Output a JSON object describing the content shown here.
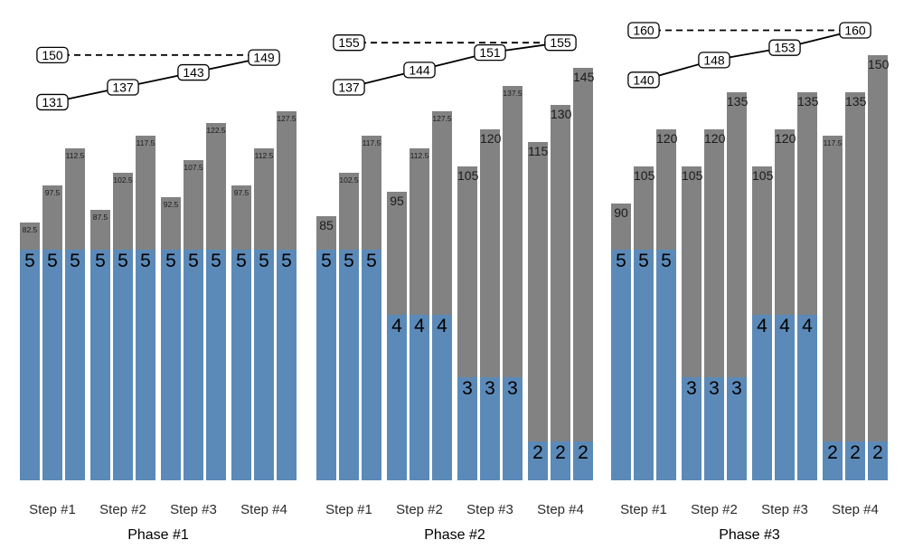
{
  "chart_data": {
    "type": "bar",
    "title": "",
    "legend": [],
    "grid": false,
    "colors": {
      "bar_fill_gray": "#828282",
      "bar_fill_blue": "#5c8ab8",
      "line_color": "#000000",
      "label_box_bg": "#ffffff",
      "label_box_border": "#000000"
    },
    "value_axis": {
      "visible": false,
      "approx_range": [
        -20,
        170
      ]
    },
    "phases": [
      {
        "label": "Phase #1",
        "target_dashed_value": 150,
        "progress_line_values": [
          131,
          137,
          143,
          149
        ],
        "steps": [
          {
            "label": "Step #1",
            "totals": [
              82.5,
              97.5,
              112.5
            ],
            "counts": [
              5,
              5,
              5
            ]
          },
          {
            "label": "Step #2",
            "totals": [
              87.5,
              102.5,
              117.5
            ],
            "counts": [
              5,
              5,
              5
            ]
          },
          {
            "label": "Step #3",
            "totals": [
              92.5,
              107.5,
              122.5
            ],
            "counts": [
              5,
              5,
              5
            ]
          },
          {
            "label": "Step #4",
            "totals": [
              97.5,
              112.5,
              127.5
            ],
            "counts": [
              5,
              5,
              5
            ]
          }
        ]
      },
      {
        "label": "Phase #2",
        "target_dashed_value": 155,
        "progress_line_values": [
          137,
          144,
          151,
          155
        ],
        "steps": [
          {
            "label": "Step #1",
            "totals": [
              85,
              102.5,
              117.5
            ],
            "counts": [
              5,
              5,
              5
            ]
          },
          {
            "label": "Step #2",
            "totals": [
              95,
              112.5,
              127.5
            ],
            "counts": [
              4,
              4,
              4
            ]
          },
          {
            "label": "Step #3",
            "totals": [
              105,
              120,
              137.5
            ],
            "counts": [
              3,
              3,
              3
            ]
          },
          {
            "label": "Step #4",
            "totals": [
              115,
              130,
              145
            ],
            "counts": [
              2,
              2,
              2
            ]
          }
        ]
      },
      {
        "label": "Phase #3",
        "target_dashed_value": 160,
        "progress_line_values": [
          140,
          148,
          153,
          160
        ],
        "steps": [
          {
            "label": "Step #1",
            "totals": [
              90,
              105,
              120
            ],
            "counts": [
              5,
              5,
              5
            ]
          },
          {
            "label": "Step #2",
            "totals": [
              105,
              120,
              135
            ],
            "counts": [
              3,
              3,
              3
            ]
          },
          {
            "label": "Step #3",
            "totals": [
              105,
              120,
              135
            ],
            "counts": [
              4,
              4,
              4
            ]
          },
          {
            "label": "Step #4",
            "totals": [
              117.5,
              135,
              150
            ],
            "counts": [
              2,
              2,
              2
            ]
          }
        ]
      }
    ]
  }
}
